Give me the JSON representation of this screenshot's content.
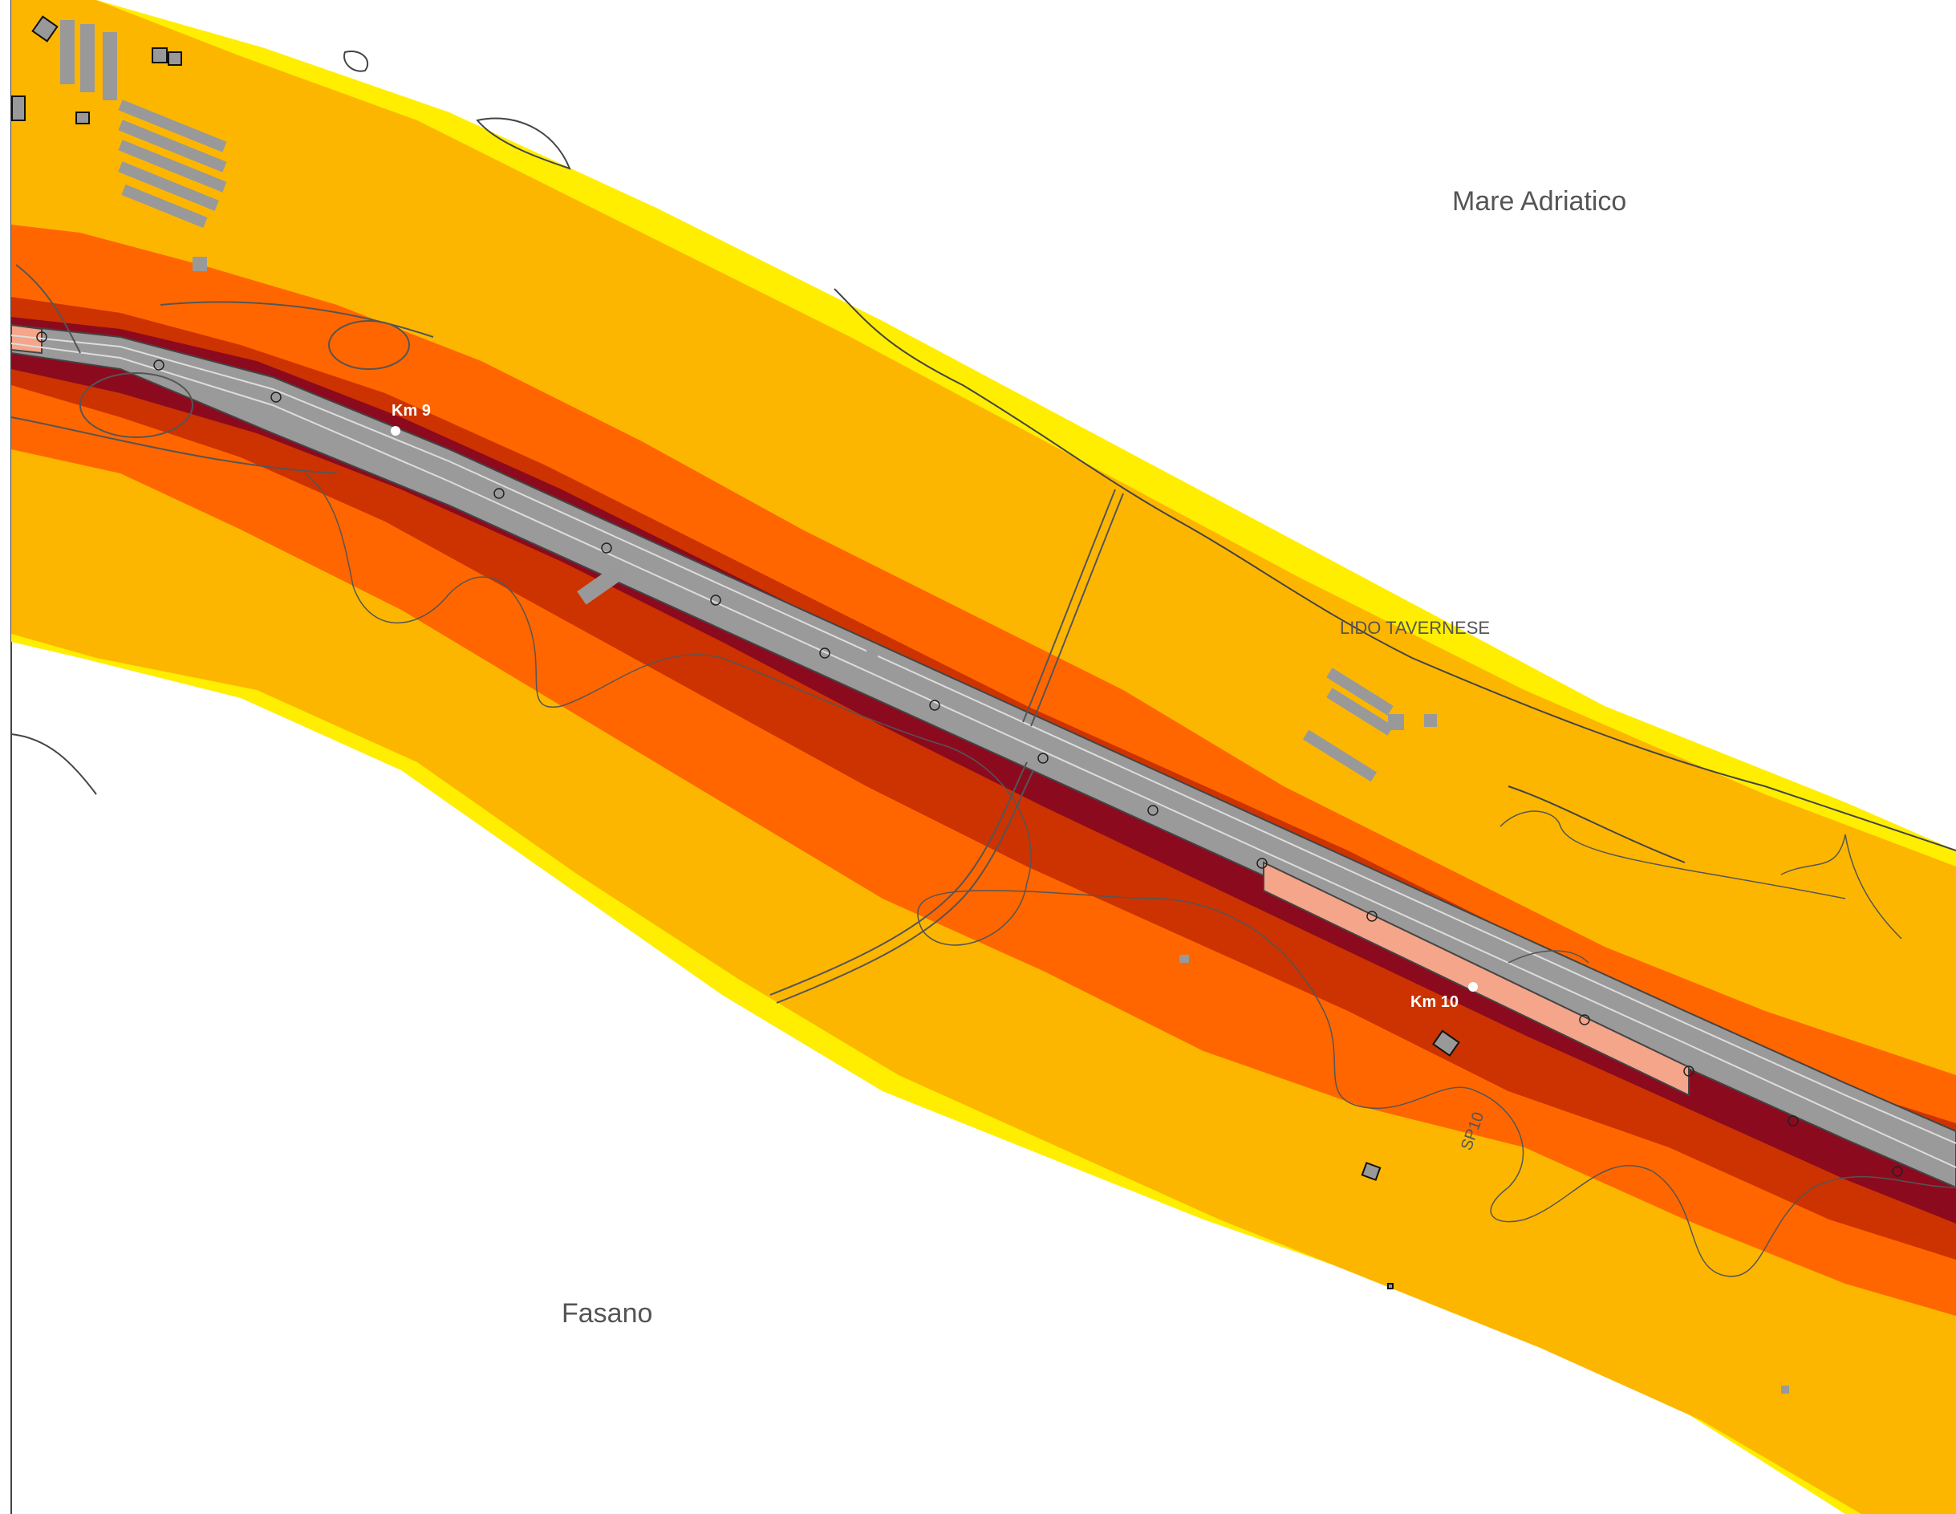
{
  "map": {
    "labels": {
      "sea": "Mare Adriatico",
      "town": "Fasano",
      "locality": "LIDO TAVERNESE",
      "road": "SP10",
      "km9": "Km 9",
      "km10": "Km 10"
    },
    "colors": {
      "band_outer": "#ffee00",
      "band_1": "#fdb600",
      "band_2": "#ff6600",
      "band_3": "#cc3300",
      "band_4": "#8c0a1e",
      "road_surface": "#9a9a9a",
      "viaduct": "#f4a58a",
      "buildings": "#999999"
    }
  }
}
